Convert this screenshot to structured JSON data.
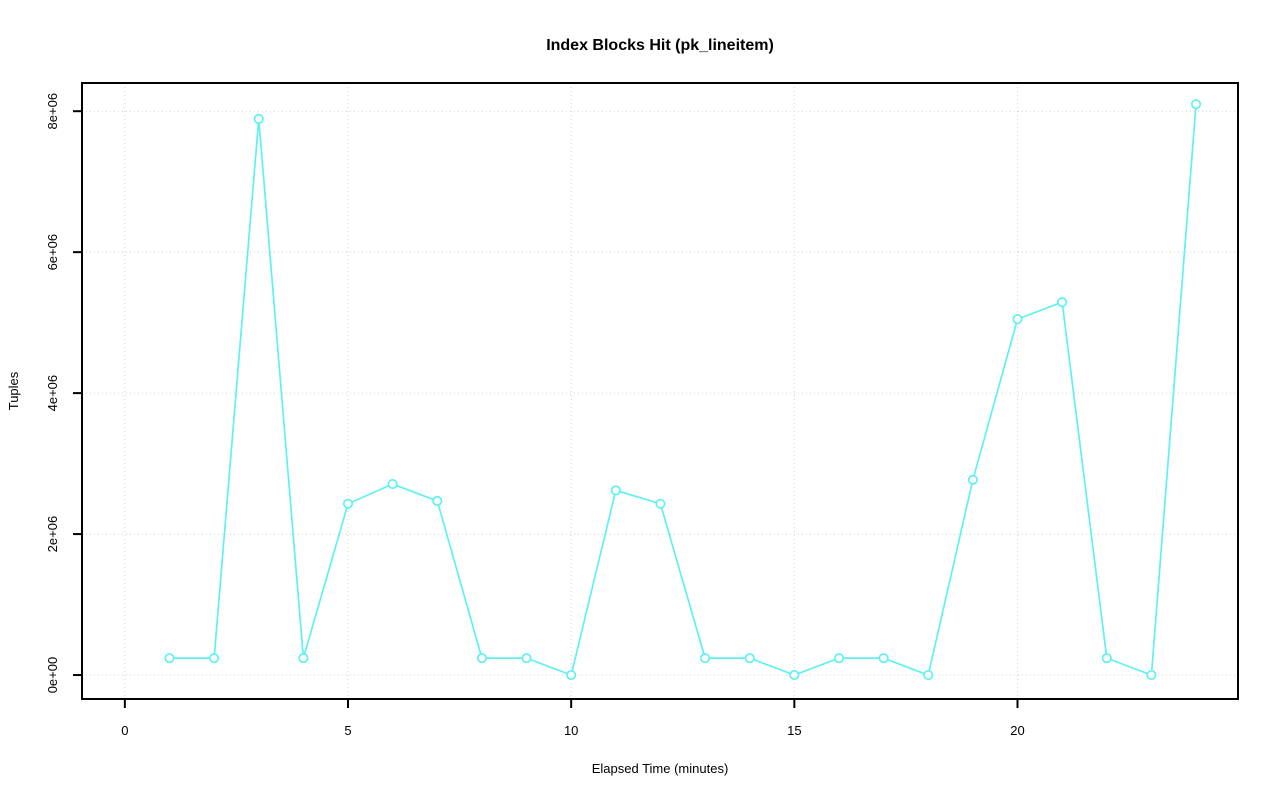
{
  "page": {
    "background_color": "#ffffff"
  },
  "chart_data": {
    "type": "line",
    "title": "Index Blocks Hit (pk_lineitem)",
    "xlabel": "Elapsed Time (minutes)",
    "ylabel": "Tuples",
    "grid": true,
    "legend_position": "none",
    "line_color": "#5ff1f1",
    "marker": "open-circle",
    "marker_fill": "#ffffff",
    "grid_color": "#d3d3d3",
    "axis_color": "#000000",
    "xlim": [
      -0.96,
      24.94
    ],
    "ylim": [
      -340000,
      8400000
    ],
    "x_ticks": [
      {
        "value": 0,
        "label": "0"
      },
      {
        "value": 5,
        "label": "5"
      },
      {
        "value": 10,
        "label": "10"
      },
      {
        "value": 15,
        "label": "15"
      },
      {
        "value": 20,
        "label": "20"
      }
    ],
    "y_ticks": [
      {
        "value": 0,
        "label": "0e+00"
      },
      {
        "value": 2000000,
        "label": "2e+06"
      },
      {
        "value": 4000000,
        "label": "4e+06"
      },
      {
        "value": 6000000,
        "label": "6e+06"
      },
      {
        "value": 8000000,
        "label": "8e+06"
      }
    ],
    "series": [
      {
        "name": "index-blocks-hit",
        "x": [
          1,
          2,
          3,
          4,
          5,
          6,
          7,
          8,
          9,
          10,
          11,
          12,
          13,
          14,
          15,
          16,
          17,
          18,
          19,
          20,
          21,
          22,
          23,
          24
        ],
        "y": [
          240000,
          240000,
          7890000,
          240000,
          2430000,
          2710000,
          2470000,
          240000,
          240000,
          0,
          2620000,
          2430000,
          240000,
          240000,
          0,
          240000,
          240000,
          0,
          2770000,
          5050000,
          5290000,
          240000,
          0,
          8100000
        ]
      }
    ]
  }
}
